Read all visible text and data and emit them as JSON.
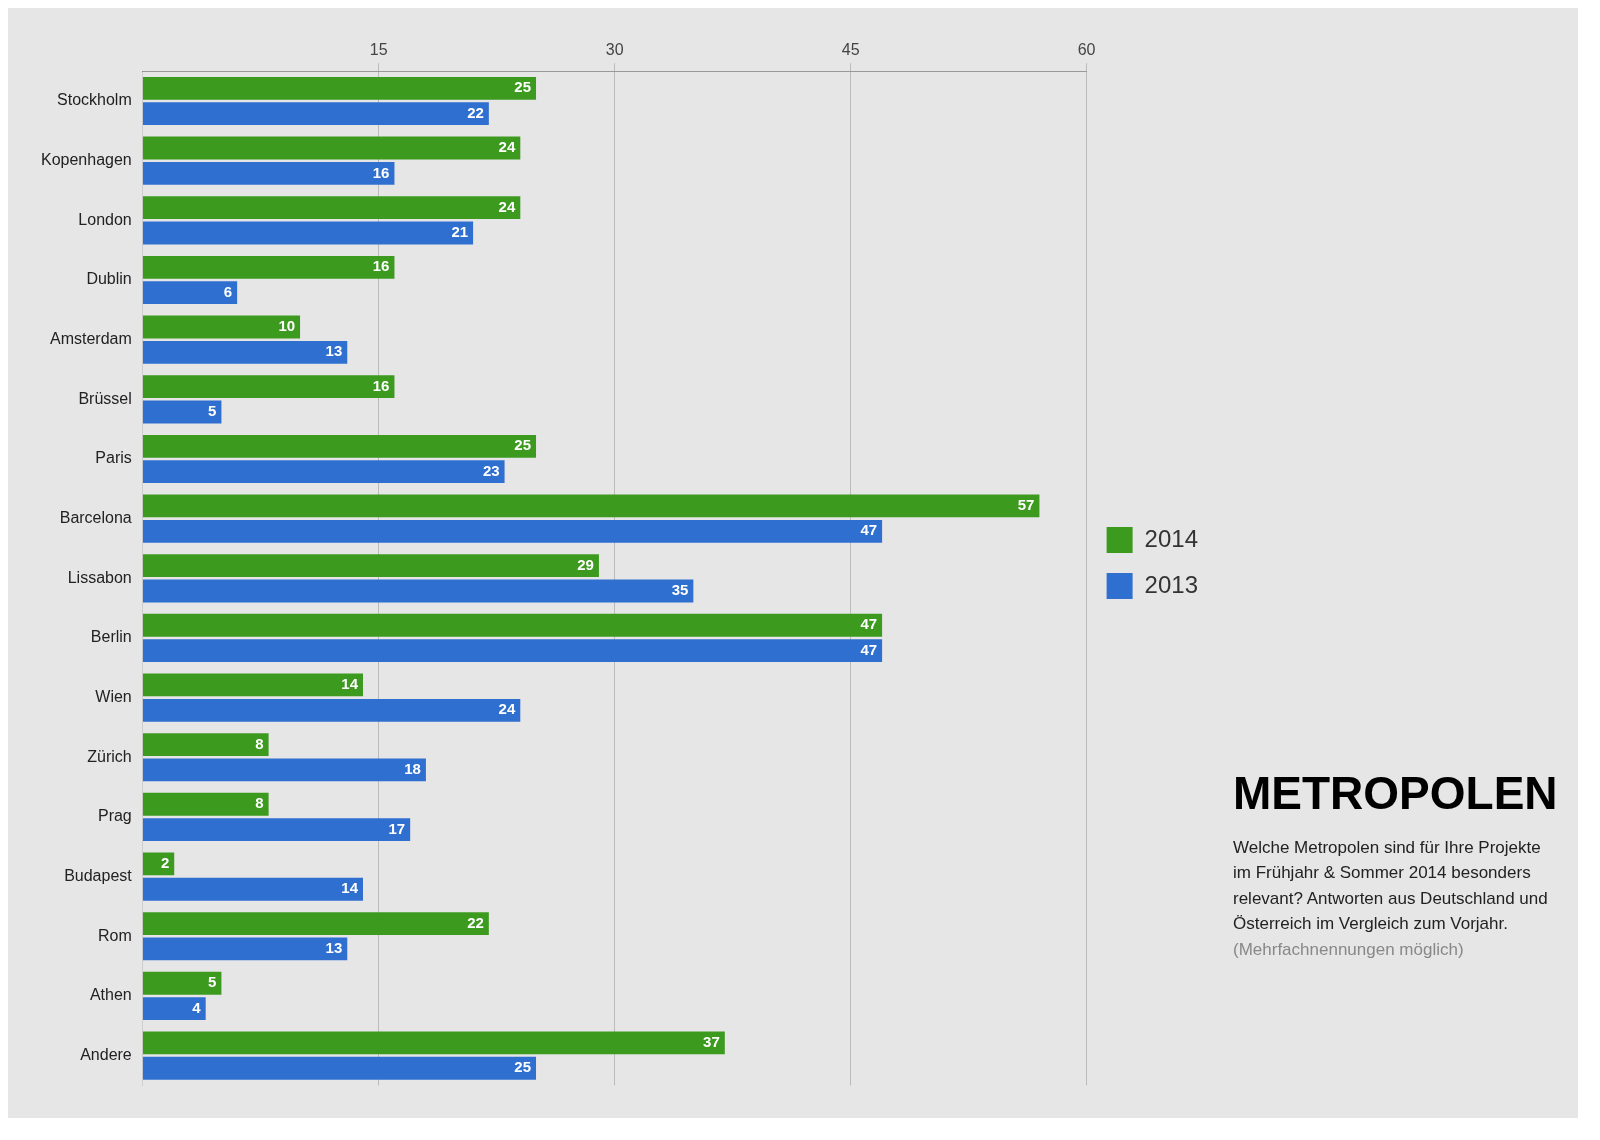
{
  "chart_data": {
    "type": "bar",
    "orientation": "horizontal",
    "title": "METROPOLEN",
    "subtitle": "Welche Metropolen sind für Ihre Projekte im Frühjahr & Sommer 2014 besonders relevant? Antworten aus Deutschland und Österreich im Vergleich zum Vorjahr.",
    "annotations": [
      "(Mehrfachnennungen möglich)"
    ],
    "categories": [
      "Stockholm",
      "Kopenhagen",
      "London",
      "Dublin",
      "Amsterdam",
      "Brüssel",
      "Paris",
      "Barcelona",
      "Lissabon",
      "Berlin",
      "Wien",
      "Zürich",
      "Prag",
      "Budapest",
      "Rom",
      "Athen",
      "Andere"
    ],
    "series": [
      {
        "name": "2014",
        "color": "#3c9a1f",
        "values": [
          25,
          24,
          24,
          16,
          10,
          16,
          25,
          57,
          29,
          47,
          14,
          8,
          8,
          2,
          22,
          5,
          37
        ]
      },
      {
        "name": "2013",
        "color": "#2f6fd0",
        "values": [
          22,
          16,
          21,
          6,
          13,
          5,
          23,
          47,
          35,
          47,
          24,
          18,
          17,
          14,
          13,
          4,
          25
        ]
      }
    ],
    "xlim": [
      0,
      60
    ],
    "xticks": [
      15,
      30,
      45,
      60
    ],
    "grid": "x",
    "legend": "right",
    "data_labels": true
  }
}
